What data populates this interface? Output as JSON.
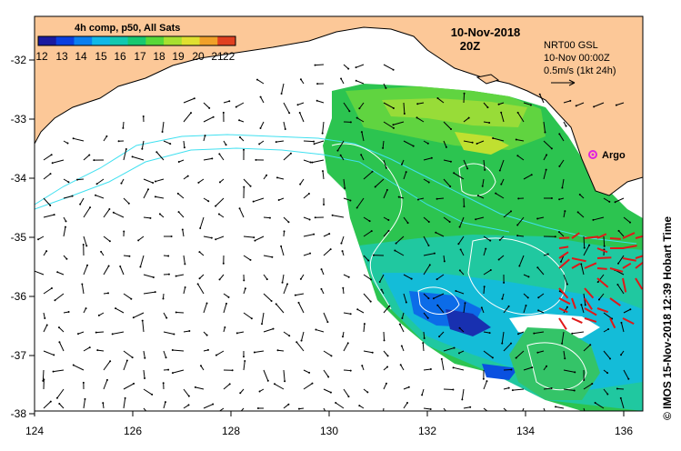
{
  "legend": {
    "title": "4h comp, p50, All Sats",
    "labels": [
      "12",
      "13",
      "14",
      "15",
      "16",
      "17",
      "18",
      "19",
      "20",
      "21",
      "22"
    ],
    "colors": [
      "#1a1aa0",
      "#0a3fe0",
      "#0a7ff0",
      "#10b8e8",
      "#12c8b0",
      "#18c870",
      "#58d838",
      "#a8e030",
      "#e0e030",
      "#f0a028",
      "#e04020"
    ]
  },
  "header": {
    "date": "10-Nov-2018",
    "time": "20Z"
  },
  "info": {
    "line1": "NRT00 GSL",
    "line2": "10-Nov 00:00Z",
    "line3": "0.5m/s (1kt 24h)"
  },
  "argo": {
    "label": "Argo"
  },
  "credit": "© IMOS 15-Nov-2018 12:39 Hobart Time",
  "axes": {
    "x_labels": [
      "124",
      "126",
      "128",
      "130",
      "132",
      "134",
      "136"
    ],
    "y_labels": [
      "-32",
      "-33",
      "-34",
      "-35",
      "-36",
      "-37",
      "-38"
    ]
  },
  "colors": {
    "land": "#fcc898",
    "ocean": "#ffffff",
    "sst_contour": "#ffffff",
    "ssh_contour": "#40e0f0",
    "fast_vectors": "#e01818",
    "argo_marker": "#e020e0"
  }
}
